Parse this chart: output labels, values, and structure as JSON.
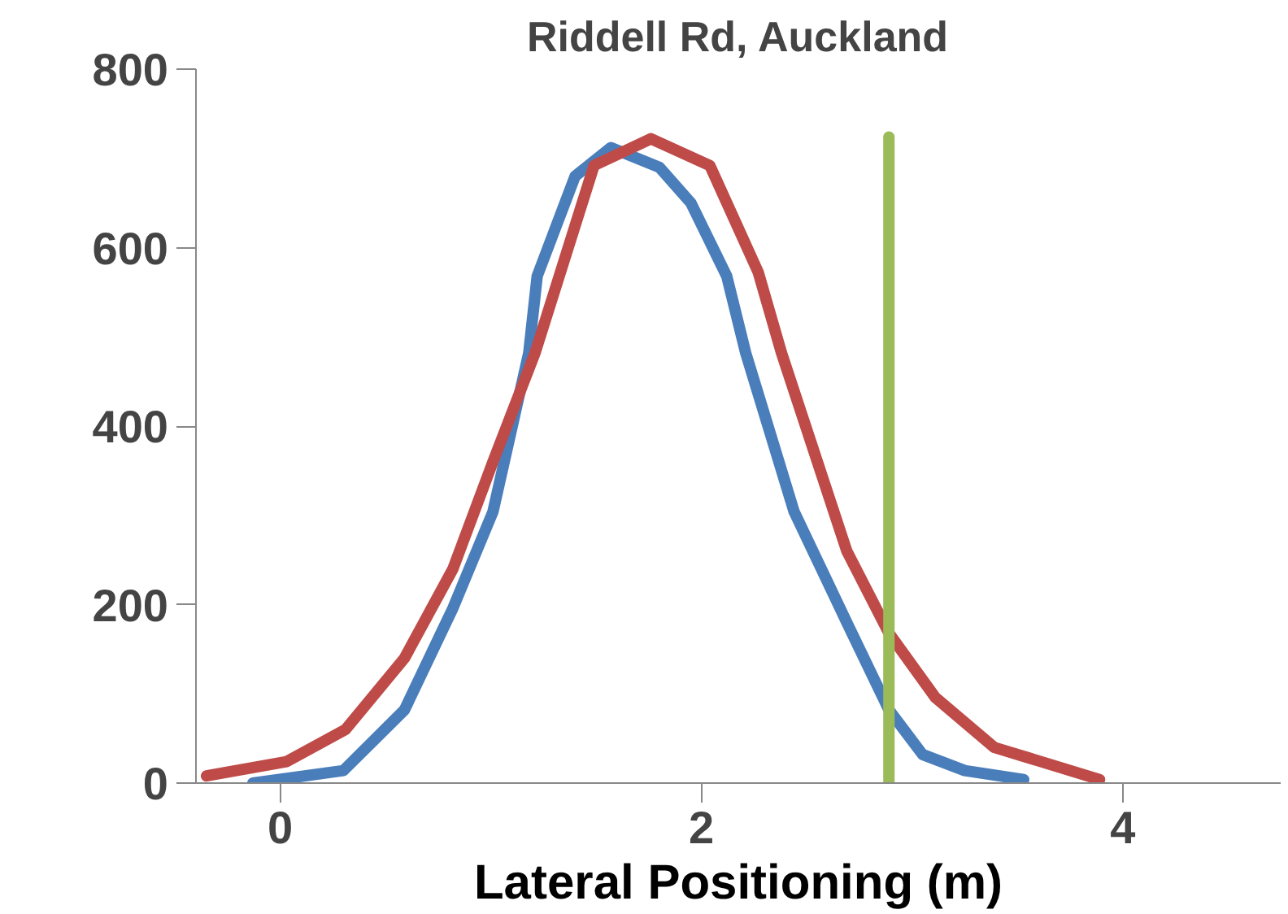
{
  "chart_data": {
    "type": "line",
    "title": "Riddell Rd, Auckland",
    "xlabel": "Lateral Positioning (m)",
    "xlim": [
      -0.4,
      4.75
    ],
    "ylim": [
      0,
      800
    ],
    "xticks": [
      0,
      2,
      4
    ],
    "yticks": [
      0,
      200,
      400,
      600,
      800
    ],
    "grid": false,
    "marker": "none",
    "line_style": "solid",
    "series": [
      {
        "color": "#4a7ebb",
        "x": [
          -0.13,
          0.3,
          0.59,
          0.82,
          1.01,
          1.18,
          1.22,
          1.4,
          1.57,
          1.8,
          1.95,
          2.12,
          2.21,
          2.44,
          2.69,
          2.89,
          3.05,
          3.25,
          3.53
        ],
        "values": [
          0,
          14,
          82,
          196,
          304,
          482,
          568,
          680,
          712,
          690,
          650,
          568,
          482,
          304,
          180,
          82,
          32,
          14,
          4
        ]
      },
      {
        "color": "#be4b48",
        "x": [
          -0.35,
          0.03,
          0.31,
          0.59,
          0.82,
          1.01,
          1.21,
          1.49,
          1.76,
          2.04,
          2.27,
          2.38,
          2.69,
          2.89,
          3.11,
          3.39,
          3.89
        ],
        "values": [
          8,
          24,
          60,
          140,
          240,
          360,
          482,
          692,
          722,
          692,
          572,
          482,
          260,
          168,
          96,
          40,
          4
        ]
      },
      {
        "color": "#9bbb59",
        "x": [
          2.89,
          2.89
        ],
        "values": [
          0,
          724
        ]
      }
    ]
  }
}
